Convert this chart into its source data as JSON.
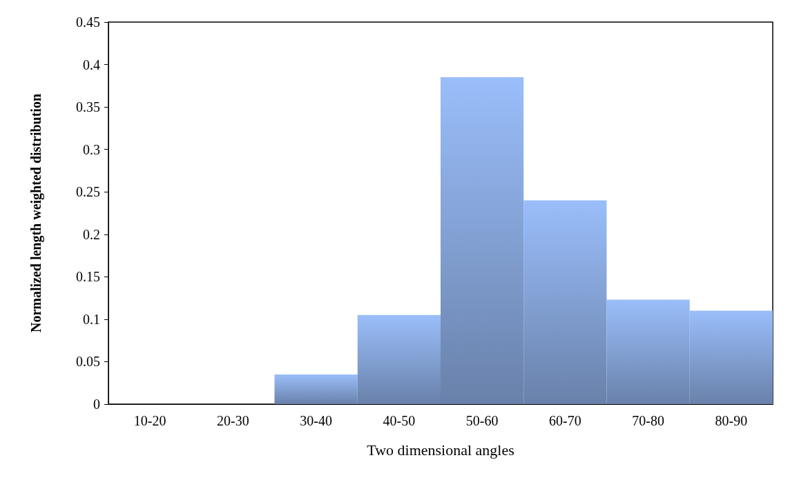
{
  "chart_data": {
    "type": "bar",
    "xlabel": "Two dimensional angles",
    "ylabel": "Normalized length weighted distribution",
    "categories": [
      "10-20",
      "20-30",
      "30-40",
      "40-50",
      "50-60",
      "60-70",
      "70-80",
      "80-90"
    ],
    "values": [
      0,
      0,
      0.035,
      0.105,
      0.385,
      0.24,
      0.123,
      0.11
    ],
    "color": "#9abefa",
    "ylim": [
      0,
      0.45
    ],
    "yticks": [
      0,
      0.05,
      0.1,
      0.15,
      0.2,
      0.25,
      0.3,
      0.35,
      0.4,
      0.45
    ],
    "grid": false
  }
}
